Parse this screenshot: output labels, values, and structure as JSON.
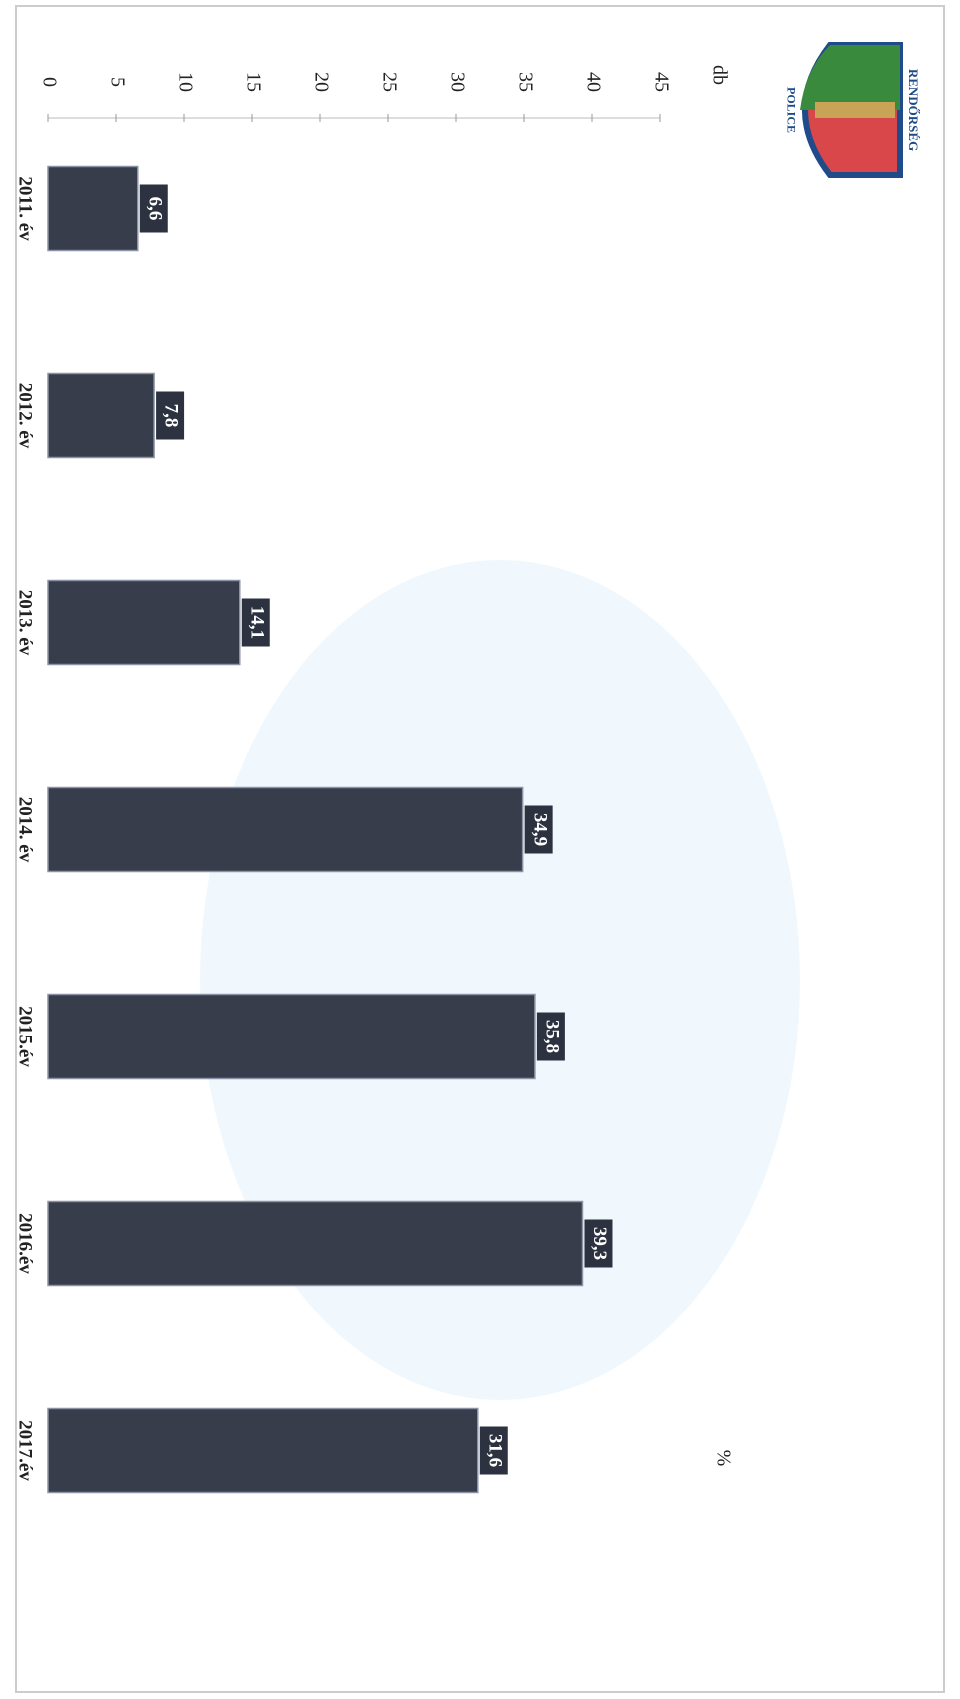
{
  "chart_data": {
    "type": "bar",
    "categories": [
      "2011. év",
      "2012. év",
      "2013. év",
      "2014. év",
      "2015.év",
      "2016.év",
      "2017.év"
    ],
    "values": [
      6.6,
      7.8,
      14.1,
      34.9,
      35.8,
      39.3,
      31.6
    ],
    "value_labels": [
      "6,6",
      "7,8",
      "14,1",
      "34,9",
      "35,8",
      "39,3",
      "31,6"
    ],
    "color": "#373d4b",
    "ylim": [
      0,
      45
    ],
    "yticks": [
      0,
      5,
      10,
      15,
      20,
      25,
      30,
      35,
      40,
      45
    ],
    "y_unit": "db",
    "unit": "%",
    "grid": false
  },
  "logo": {
    "top": "RENDŐRSÉG",
    "bottom": "POLICE"
  }
}
